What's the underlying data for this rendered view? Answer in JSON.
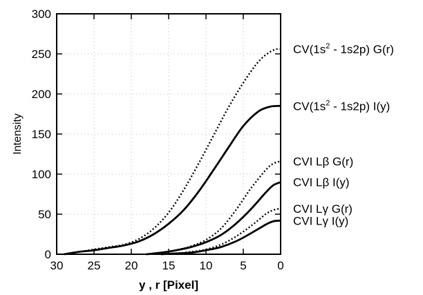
{
  "chart_data": {
    "type": "line",
    "title": "",
    "xlabel": "y , r [Pixel]",
    "ylabel": "Intensity",
    "xlim": [
      30,
      0
    ],
    "ylim": [
      0,
      300
    ],
    "x_ticks": [
      30,
      25,
      20,
      15,
      10,
      5,
      0
    ],
    "y_ticks": [
      0,
      50,
      100,
      150,
      200,
      250,
      300
    ],
    "grid": true,
    "series": [
      {
        "name": "CV(1s² - 1s2p) G(r)",
        "label_main": "CV(1s",
        "label_sup": "2",
        "label_rest": " - 1s2p) G(r)",
        "style": "dotted",
        "x": [
          29,
          27,
          25,
          23,
          21,
          19,
          17,
          15,
          13,
          11,
          9,
          7,
          5,
          3,
          1.5,
          0.5,
          0
        ],
        "y": [
          0,
          3,
          6,
          9,
          12,
          19,
          32,
          52,
          80,
          113,
          148,
          183,
          214,
          240,
          252,
          256,
          256
        ]
      },
      {
        "name": "CV(1s² - 1s2p) I(y)",
        "label_main": "CV(1s",
        "label_sup": "2",
        "label_rest": " - 1s2p) I(y)",
        "style": "solid",
        "x": [
          29,
          27,
          25,
          23,
          21,
          19,
          17,
          15,
          13,
          11,
          9,
          7,
          5,
          3,
          1.5,
          0.5,
          0
        ],
        "y": [
          0,
          3,
          5,
          8,
          11,
          16,
          25,
          38,
          55,
          78,
          105,
          133,
          160,
          178,
          184,
          185,
          185
        ]
      },
      {
        "name": "CVI Lβ G(r)",
        "style": "dotted",
        "x": [
          18,
          16,
          14,
          12,
          10,
          8,
          6,
          4,
          2,
          1,
          0
        ],
        "y": [
          0,
          2,
          5,
          10,
          18,
          32,
          55,
          82,
          105,
          113,
          116
        ]
      },
      {
        "name": "CVI Lβ I(y)",
        "style": "solid",
        "x": [
          18,
          16,
          14,
          12,
          10,
          8,
          6,
          4,
          2,
          1,
          0
        ],
        "y": [
          0,
          2,
          5,
          9,
          15,
          24,
          38,
          56,
          77,
          86,
          90
        ]
      },
      {
        "name": "CVI Lγ G(r)",
        "style": "dotted",
        "x": [
          16,
          14,
          12,
          10,
          8,
          6,
          4,
          2,
          1,
          0
        ],
        "y": [
          0,
          1,
          3,
          6,
          12,
          22,
          35,
          50,
          55,
          57
        ]
      },
      {
        "name": "CVI Lγ I(y)",
        "style": "solid",
        "x": [
          16,
          14,
          12,
          10,
          8,
          6,
          4,
          2,
          1,
          0
        ],
        "y": [
          0,
          1,
          2,
          5,
          9,
          16,
          26,
          37,
          41,
          42
        ]
      }
    ]
  }
}
